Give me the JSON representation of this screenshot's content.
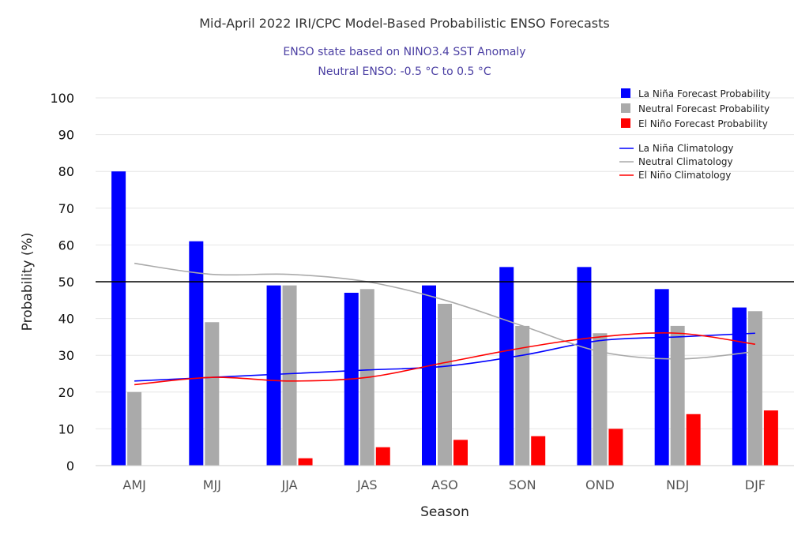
{
  "chart_data": {
    "type": "bar",
    "title": "Mid-April 2022 IRI/CPC Model-Based Probabilistic ENSO Forecasts",
    "subtitle_lines": [
      "ENSO state based on NINO3.4 SST Anomaly",
      "Neutral ENSO: -0.5 °C to 0.5 °C"
    ],
    "xlabel": "Season",
    "ylabel": "Probability (%)",
    "ylim": [
      0,
      100
    ],
    "yticks": [
      "0",
      "10",
      "20",
      "30",
      "40",
      "50",
      "60",
      "70",
      "80",
      "90",
      "100"
    ],
    "grid": true,
    "reference_line": 50,
    "legend_position": "top-right",
    "categories": [
      "AMJ",
      "MJJ",
      "JJA",
      "JAS",
      "ASO",
      "SON",
      "OND",
      "NDJ",
      "DJF"
    ],
    "series": [
      {
        "name": "La Niña Forecast Probability",
        "kind": "bar",
        "color": "#0000ff",
        "values": [
          80,
          61,
          49,
          47,
          49,
          54,
          54,
          48,
          43
        ]
      },
      {
        "name": "Neutral Forecast Probability",
        "kind": "bar",
        "color": "#aaaaaa",
        "values": [
          20,
          39,
          49,
          48,
          44,
          38,
          36,
          38,
          42
        ]
      },
      {
        "name": "El Niño Forecast Probability",
        "kind": "bar",
        "color": "#ff0000",
        "values": [
          0,
          0,
          2,
          5,
          7,
          8,
          10,
          14,
          15
        ]
      },
      {
        "name": "La Niña Climatology",
        "kind": "line",
        "color": "#0000ff",
        "values": [
          23,
          24,
          25,
          26,
          27,
          30,
          34,
          35,
          36
        ]
      },
      {
        "name": "Neutral Climatology",
        "kind": "line",
        "color": "#aaaaaa",
        "values": [
          55,
          52,
          52,
          50,
          45,
          38,
          31,
          29,
          31
        ]
      },
      {
        "name": "El Niño Climatology",
        "kind": "line",
        "color": "#ff0000",
        "values": [
          22,
          24,
          23,
          24,
          28,
          32,
          35,
          36,
          33
        ]
      }
    ]
  }
}
